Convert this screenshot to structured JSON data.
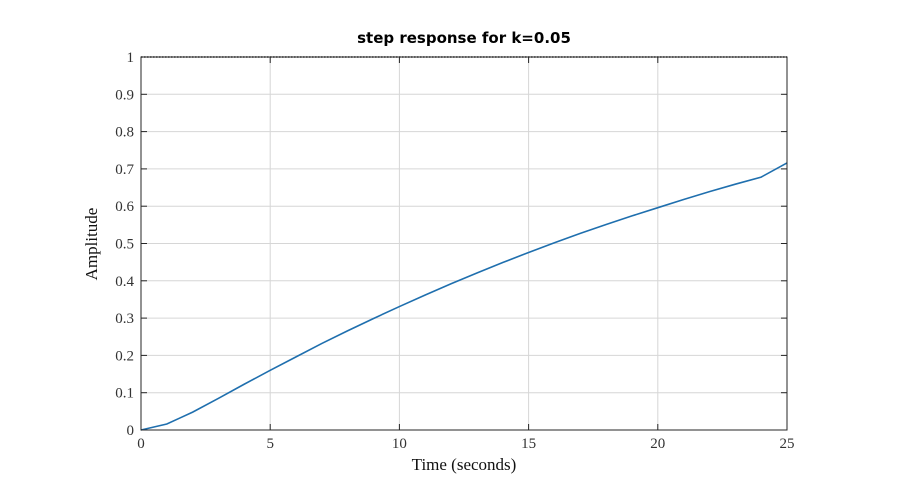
{
  "chart_data": {
    "type": "line",
    "title": "step response for k=0.05",
    "xlabel": "Time (seconds)",
    "ylabel": "Amplitude",
    "xlim": [
      0,
      25
    ],
    "ylim": [
      0,
      1
    ],
    "xticks": [
      0,
      5,
      10,
      15,
      20,
      25
    ],
    "yticks": [
      0,
      0.1,
      0.2,
      0.3,
      0.4,
      0.5,
      0.6,
      0.7,
      0.8,
      0.9,
      1
    ],
    "xtick_labels": [
      "0",
      "5",
      "10",
      "15",
      "20",
      "25"
    ],
    "ytick_labels": [
      "0",
      "0.1",
      "0.2",
      "0.3",
      "0.4",
      "0.5",
      "0.6",
      "0.7",
      "0.8",
      "0.9",
      "1"
    ],
    "grid": true,
    "line_color": "#1f6fae",
    "x": [
      0,
      0.5,
      1,
      1.5,
      2,
      3,
      4,
      5,
      6,
      7,
      8,
      9,
      10,
      11,
      12,
      13,
      14,
      15,
      16,
      17,
      18,
      19,
      20,
      21,
      22,
      23,
      24,
      25
    ],
    "y": [
      0,
      0.008,
      0.016,
      0.032,
      0.048,
      0.085,
      0.123,
      0.16,
      0.196,
      0.232,
      0.266,
      0.299,
      0.331,
      0.362,
      0.392,
      0.421,
      0.449,
      0.476,
      0.502,
      0.527,
      0.551,
      0.574,
      0.596,
      0.618,
      0.639,
      0.659,
      0.678,
      0.716
    ]
  }
}
